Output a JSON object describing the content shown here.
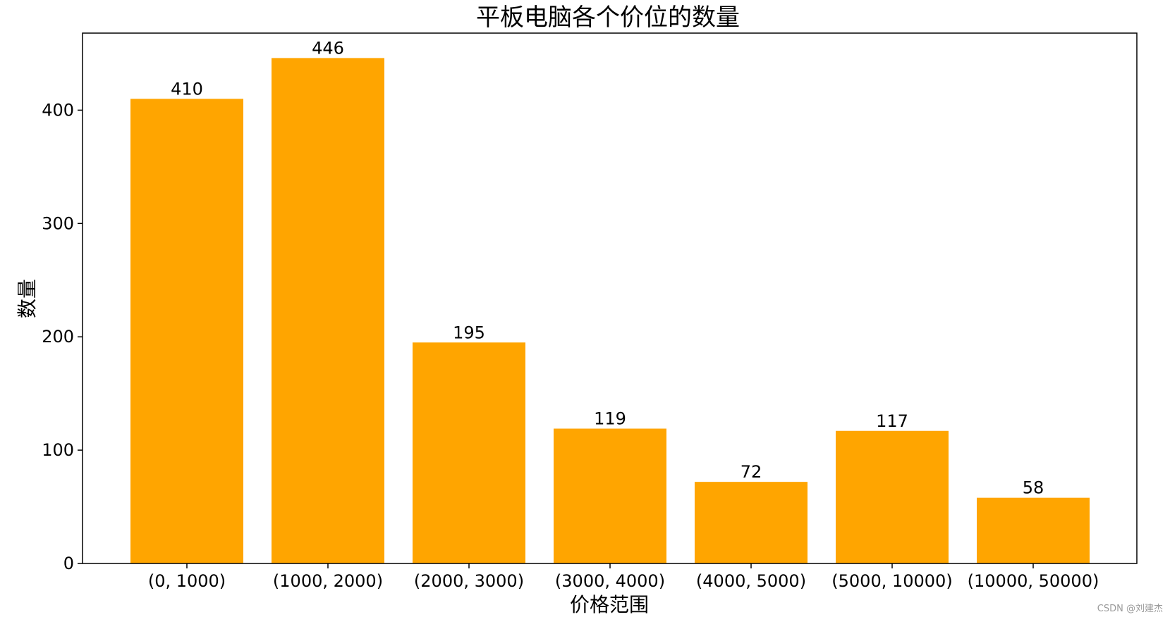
{
  "chart_data": {
    "type": "bar",
    "title": "平板电脑各个价位的数量",
    "xlabel": "价格范围",
    "ylabel": "数量",
    "categories": [
      "(0, 1000)",
      "(1000, 2000)",
      "(2000, 3000)",
      "(3000, 4000)",
      "(4000, 5000)",
      "(5000, 10000)",
      "(10000, 50000)"
    ],
    "values": [
      410,
      446,
      195,
      119,
      72,
      117,
      58
    ],
    "ylim": [
      0,
      468
    ],
    "yticks": [
      0,
      100,
      200,
      300,
      400
    ],
    "grid": false,
    "bar_color": "#FFA500"
  },
  "watermark": "CSDN @刘建杰"
}
